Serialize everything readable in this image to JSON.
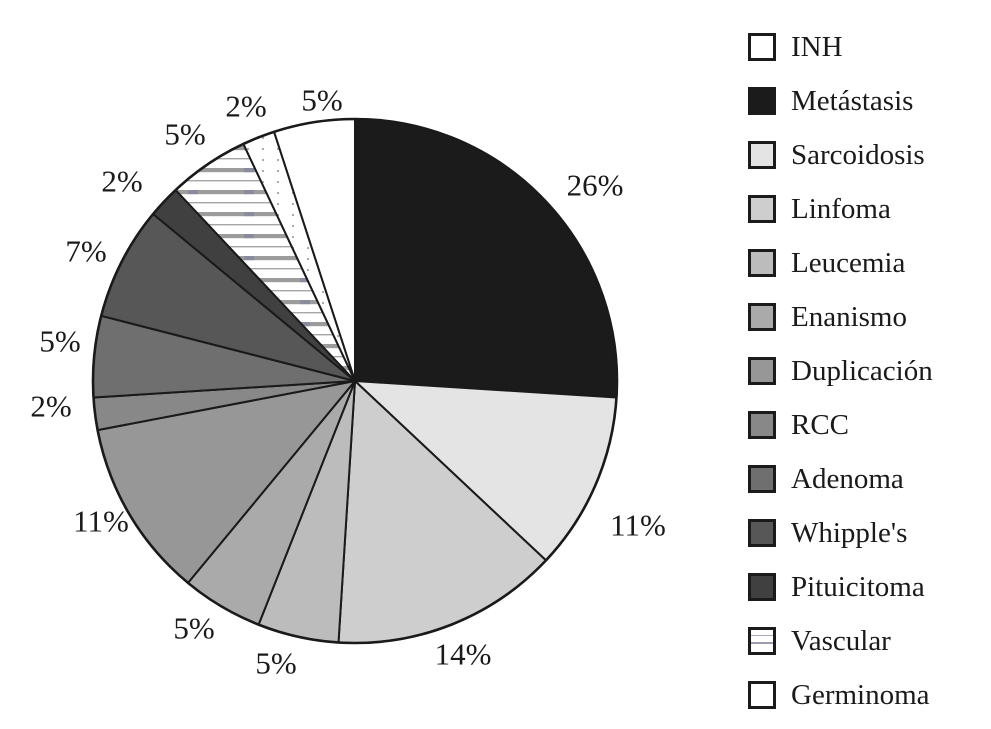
{
  "chart_data": {
    "type": "pie",
    "title": "",
    "legend_position": "right",
    "direction": "clockwise",
    "rotation_deg": -18,
    "labels_shown": "percent-outside",
    "stroke_color": "#1a1a1a",
    "background_color": "#ffffff",
    "segments": [
      {
        "label": "INH",
        "value": 5,
        "display": "5%",
        "color": "#ffffff",
        "pattern": "none"
      },
      {
        "label": "Metástasis",
        "value": 26,
        "display": "26%",
        "color": "#1b1b1b",
        "pattern": "none"
      },
      {
        "label": "Sarcoidosis",
        "value": 11,
        "display": "11%",
        "color": "#e4e4e4",
        "pattern": "none"
      },
      {
        "label": "Linfoma",
        "value": 14,
        "display": "14%",
        "color": "#cecece",
        "pattern": "none"
      },
      {
        "label": "Leucemia",
        "value": 5,
        "display": "5%",
        "color": "#bcbcbc",
        "pattern": "none"
      },
      {
        "label": "Enanismo",
        "value": 5,
        "display": "5%",
        "color": "#aaaaaa",
        "pattern": "none"
      },
      {
        "label": "Duplicación",
        "value": 11,
        "display": "11%",
        "color": "#979797",
        "pattern": "none"
      },
      {
        "label": "RCC",
        "value": 2,
        "display": "2%",
        "color": "#888888",
        "pattern": "none"
      },
      {
        "label": "Adenoma",
        "value": 5,
        "display": "5%",
        "color": "#6f6f6f",
        "pattern": "none"
      },
      {
        "label": "Whipple's",
        "value": 7,
        "display": "7%",
        "color": "#575757",
        "pattern": "none"
      },
      {
        "label": "Pituicitoma",
        "value": 2,
        "display": "2%",
        "color": "#404040",
        "pattern": "none"
      },
      {
        "label": "Vascular",
        "value": 5,
        "display": "5%",
        "color": "#ffffff",
        "pattern": "hstripes"
      },
      {
        "label": "Germinoma",
        "value": 2,
        "display": "2%",
        "color": "#ffffff",
        "pattern": "dots"
      }
    ]
  }
}
